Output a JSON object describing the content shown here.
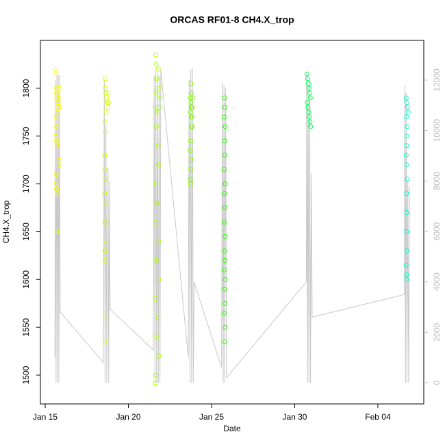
{
  "chart_data": {
    "type": "scatter",
    "title": "ORCAS RF01-8 CH4.X_trop",
    "x_label": "Date",
    "y_label": "CH4.X_trop",
    "xlim": [
      14.71,
      37.76
    ],
    "ylim": [
      1469.9,
      1850.1
    ],
    "y2lim": [
      -842,
      13575
    ],
    "xticks": [
      {
        "value": 15,
        "label": "Jan 15"
      },
      {
        "value": 20,
        "label": "Jan 20"
      },
      {
        "value": 25,
        "label": "Jan 25"
      },
      {
        "value": 30,
        "label": "Jan 30"
      },
      {
        "value": 35,
        "label": "Feb 04"
      }
    ],
    "yticks": [
      1500,
      1550,
      1600,
      1650,
      1700,
      1750,
      1800
    ],
    "y2ticks": [
      0,
      2000,
      4000,
      6000,
      8000,
      10000,
      12000
    ],
    "series": [
      {
        "color": "#c8c8c8",
        "axis": "y2",
        "x": [
          15.58,
          15.6,
          15.62,
          15.65,
          15.7,
          15.74,
          15.78,
          15.82,
          15.86,
          15.9,
          18.5,
          18.55,
          18.6,
          18.65,
          18.7,
          18.78,
          18.82,
          18.86,
          18.9,
          18.92,
          21.5,
          21.55,
          21.6,
          21.65,
          21.7,
          21.75,
          21.8,
          21.85,
          21.9,
          21.95,
          23.6,
          23.65,
          23.7,
          23.75,
          23.8,
          23.85,
          23.9,
          23.95,
          25.6,
          25.65,
          25.7,
          25.75,
          25.8,
          25.85,
          25.9,
          30.7,
          30.72,
          30.76,
          30.8,
          30.85,
          30.9,
          30.95,
          31.0,
          31.05,
          36.6,
          36.62,
          36.66,
          36.7,
          36.75,
          36.8,
          36.85,
          36.9
        ],
        "values": [
          1000,
          4500,
          12000,
          0,
          12200,
          0,
          12200,
          0,
          12200,
          2800,
          800,
          12000,
          0,
          10200,
          0,
          8500,
          0,
          8000,
          3000,
          2900,
          1300,
          12200,
          0,
          12400,
          0,
          12300,
          0,
          12200,
          0,
          12400,
          1000,
          12000,
          0,
          12400,
          0,
          12500,
          0,
          4000,
          600,
          11900,
          0,
          11800,
          0,
          11700,
          200,
          4000,
          12300,
          0,
          11800,
          0,
          12000,
          0,
          8300,
          2600,
          3500,
          11800,
          0,
          11500,
          0,
          8000,
          0,
          7800
        ]
      },
      {
        "color": "#ffff00",
        "x": [
          15.62,
          15.64,
          15.66,
          15.68,
          15.7,
          15.72,
          15.74,
          15.76,
          15.64,
          15.66,
          15.62,
          15.68,
          15.7,
          15.86,
          15.84,
          15.66,
          15.64,
          15.68,
          15.72,
          15.7,
          15.82,
          15.84,
          15.86,
          15.88
        ],
        "values": [
          1820,
          1815,
          1800,
          1795,
          1790,
          1785,
          1780,
          1775,
          1770,
          1760,
          1750,
          1745,
          1740,
          1725,
          1720,
          1710,
          1700,
          1695,
          1690,
          1650,
          1780,
          1785,
          1790,
          1800
        ]
      },
      {
        "color": "#d4ff00",
        "x": [
          18.6,
          18.62,
          18.64,
          18.7,
          18.72,
          18.76,
          18.66,
          18.6,
          18.62,
          18.58,
          18.6,
          18.62,
          18.58,
          18.62,
          18.6,
          18.64,
          18.58,
          18.6,
          18.62,
          18.6,
          18.78,
          18.8
        ],
        "values": [
          1810,
          1800,
          1795,
          1790,
          1785,
          1780,
          1775,
          1765,
          1755,
          1730,
          1715,
          1705,
          1690,
          1680,
          1660,
          1640,
          1630,
          1620,
          1560,
          1535,
          1795,
          1785
        ]
      },
      {
        "color": "#aaff00",
        "x": [
          21.64,
          21.66,
          21.8,
          21.7,
          21.84,
          21.66,
          21.62,
          21.72,
          21.68,
          21.8,
          21.82,
          21.66,
          21.7,
          21.64,
          21.82,
          21.68,
          21.84,
          21.62,
          21.78,
          21.7,
          21.82,
          21.64,
          21.62,
          21.86,
          21.9
        ],
        "values": [
          1835,
          1825,
          1820,
          1810,
          1800,
          1795,
          1780,
          1775,
          1760,
          1740,
          1720,
          1700,
          1680,
          1660,
          1640,
          1620,
          1600,
          1580,
          1560,
          1540,
          1520,
          1500,
          1492,
          1780,
          1790
        ]
      },
      {
        "color": "#7fff00",
        "x": [
          23.76,
          23.8,
          23.72,
          23.76,
          23.8,
          23.74,
          23.78,
          23.8,
          23.74,
          23.72,
          23.78,
          23.74,
          23.72,
          23.74,
          23.84,
          23.86,
          23.82,
          23.84
        ],
        "values": [
          1805,
          1795,
          1790,
          1785,
          1780,
          1775,
          1770,
          1760,
          1745,
          1735,
          1725,
          1715,
          1705,
          1700,
          1780,
          1790,
          1770,
          1760
        ]
      },
      {
        "color": "#2aff00",
        "x": [
          25.78,
          25.8,
          25.76,
          25.82,
          25.78,
          25.8,
          25.76,
          25.82,
          25.78,
          25.8,
          25.76,
          25.82,
          25.78,
          25.8,
          25.76,
          25.82,
          25.78,
          25.8,
          25.76,
          25.82,
          25.8
        ],
        "values": [
          1790,
          1780,
          1770,
          1760,
          1745,
          1730,
          1715,
          1700,
          1690,
          1675,
          1660,
          1645,
          1630,
          1620,
          1610,
          1600,
          1590,
          1575,
          1565,
          1550,
          1535
        ]
      },
      {
        "color": "#00ff55",
        "x": [
          30.74,
          30.78,
          30.82,
          30.86,
          30.9,
          30.94,
          30.76,
          30.8,
          30.84,
          30.88,
          30.92,
          30.96
        ],
        "values": [
          1815,
          1810,
          1805,
          1800,
          1795,
          1790,
          1785,
          1780,
          1775,
          1770,
          1765,
          1760
        ]
      },
      {
        "color": "#00ffd4",
        "x": [
          36.7,
          36.74,
          36.78,
          36.82,
          36.72,
          36.76,
          36.74,
          36.72,
          36.7,
          36.74,
          36.76,
          36.72,
          36.74,
          36.72,
          36.74,
          36.7,
          36.72,
          36.74
        ],
        "values": [
          1790,
          1785,
          1780,
          1775,
          1770,
          1760,
          1750,
          1740,
          1730,
          1720,
          1705,
          1690,
          1670,
          1650,
          1630,
          1615,
          1605,
          1600
        ]
      }
    ]
  }
}
